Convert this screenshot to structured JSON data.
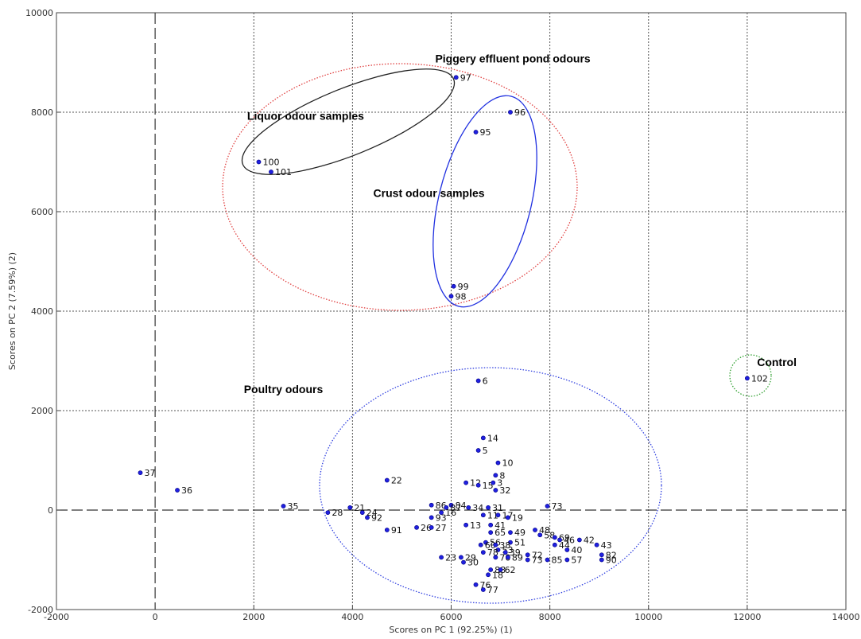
{
  "chart_data": {
    "type": "scatter",
    "title": "",
    "xlabel": "Scores on PC 1 (92.25%) (1)",
    "ylabel": "Scores on PC 2 (7.59%)  (2)",
    "xlim": [
      -2000,
      14000
    ],
    "ylim": [
      -2000,
      10000
    ],
    "xticks": [
      -2000,
      0,
      2000,
      4000,
      6000,
      8000,
      10000,
      12000,
      14000
    ],
    "yticks": [
      -2000,
      0,
      2000,
      4000,
      6000,
      8000,
      10000
    ],
    "grid": true,
    "zero_lines": true,
    "marker_color": "#2020e0",
    "series": [
      {
        "points": [
          {
            "label": "97",
            "x": 6100,
            "y": 8700
          },
          {
            "label": "96",
            "x": 7200,
            "y": 8000
          },
          {
            "label": "95",
            "x": 6500,
            "y": 7600
          },
          {
            "label": "100",
            "x": 2100,
            "y": 7000
          },
          {
            "label": "101",
            "x": 2350,
            "y": 6800
          },
          {
            "label": "99",
            "x": 6050,
            "y": 4500
          },
          {
            "label": "98",
            "x": 6000,
            "y": 4300
          },
          {
            "label": "102",
            "x": 12000,
            "y": 2650
          },
          {
            "label": "6",
            "x": 6550,
            "y": 2600
          },
          {
            "label": "14",
            "x": 6650,
            "y": 1450
          },
          {
            "label": "5",
            "x": 6550,
            "y": 1200
          },
          {
            "label": "10",
            "x": 6950,
            "y": 950
          },
          {
            "label": "8",
            "x": 6900,
            "y": 700
          },
          {
            "label": "22",
            "x": 4700,
            "y": 600
          },
          {
            "label": "12",
            "x": 6300,
            "y": 550
          },
          {
            "label": "15",
            "x": 6550,
            "y": 500
          },
          {
            "label": "3",
            "x": 6850,
            "y": 550
          },
          {
            "label": "32",
            "x": 6900,
            "y": 400
          },
          {
            "label": "37",
            "x": -300,
            "y": 750
          },
          {
            "label": "36",
            "x": 450,
            "y": 400
          },
          {
            "label": "35",
            "x": 2600,
            "y": 80
          },
          {
            "label": "21",
            "x": 3950,
            "y": 50
          },
          {
            "label": "28",
            "x": 3500,
            "y": -50
          },
          {
            "label": "24",
            "x": 4200,
            "y": -50
          },
          {
            "label": "92",
            "x": 4300,
            "y": -150
          },
          {
            "label": "86",
            "x": 5600,
            "y": 100
          },
          {
            "label": "84",
            "x": 6000,
            "y": 100
          },
          {
            "label": "87",
            "x": 5900,
            "y": 50
          },
          {
            "label": "16",
            "x": 5800,
            "y": -50
          },
          {
            "label": "34",
            "x": 6350,
            "y": 50
          },
          {
            "label": "31",
            "x": 6750,
            "y": 50
          },
          {
            "label": "73",
            "x": 7950,
            "y": 80
          },
          {
            "label": "11",
            "x": 6650,
            "y": -100
          },
          {
            "label": "17",
            "x": 6950,
            "y": -100
          },
          {
            "label": "19",
            "x": 7150,
            "y": -150
          },
          {
            "label": "93",
            "x": 5600,
            "y": -150
          },
          {
            "label": "26",
            "x": 5300,
            "y": -350
          },
          {
            "label": "27",
            "x": 5600,
            "y": -350
          },
          {
            "label": "13",
            "x": 6300,
            "y": -300
          },
          {
            "label": "41",
            "x": 6800,
            "y": -300
          },
          {
            "label": "91",
            "x": 4700,
            "y": -400
          },
          {
            "label": "49",
            "x": 7200,
            "y": -450
          },
          {
            "label": "48",
            "x": 7700,
            "y": -400
          },
          {
            "label": "65",
            "x": 6800,
            "y": -450
          },
          {
            "label": "58",
            "x": 7800,
            "y": -500
          },
          {
            "label": "69",
            "x": 8100,
            "y": -550
          },
          {
            "label": "46",
            "x": 8200,
            "y": -600
          },
          {
            "label": "42",
            "x": 8600,
            "y": -600
          },
          {
            "label": "51",
            "x": 7200,
            "y": -650
          },
          {
            "label": "56",
            "x": 6700,
            "y": -650
          },
          {
            "label": "60",
            "x": 6600,
            "y": -700
          },
          {
            "label": "38",
            "x": 6900,
            "y": -700
          },
          {
            "label": "44",
            "x": 8100,
            "y": -700
          },
          {
            "label": "43",
            "x": 8950,
            "y": -700
          },
          {
            "label": "53",
            "x": 6950,
            "y": -800
          },
          {
            "label": "40",
            "x": 8350,
            "y": -800
          },
          {
            "label": "78",
            "x": 6650,
            "y": -850
          },
          {
            "label": "39",
            "x": 7100,
            "y": -850
          },
          {
            "label": "72",
            "x": 7550,
            "y": -900
          },
          {
            "label": "82",
            "x": 9050,
            "y": -900
          },
          {
            "label": "23",
            "x": 5800,
            "y": -950
          },
          {
            "label": "29",
            "x": 6200,
            "y": -950
          },
          {
            "label": "70",
            "x": 6900,
            "y": -950
          },
          {
            "label": "89",
            "x": 7150,
            "y": -950
          },
          {
            "label": "73b",
            "x": 7550,
            "y": -1000
          },
          {
            "label": "85",
            "x": 7950,
            "y": -1000
          },
          {
            "label": "57",
            "x": 8350,
            "y": -1000
          },
          {
            "label": "90",
            "x": 9050,
            "y": -1000
          },
          {
            "label": "30",
            "x": 6250,
            "y": -1050
          },
          {
            "label": "88",
            "x": 6800,
            "y": -1200
          },
          {
            "label": "62",
            "x": 7000,
            "y": -1200
          },
          {
            "label": "18",
            "x": 6750,
            "y": -1300
          },
          {
            "label": "76",
            "x": 6500,
            "y": -1500
          },
          {
            "label": "77",
            "x": 6650,
            "y": -1600
          }
        ]
      }
    ],
    "annotations": [
      {
        "text": "Piggery effluent pond odours",
        "x": 7250,
        "y": 9000
      },
      {
        "text": "Liquor odour samples",
        "x": 3050,
        "y": 7850
      },
      {
        "text": "Crust odour samples",
        "x": 5550,
        "y": 6300
      },
      {
        "text": "Control",
        "x": 12600,
        "y": 2900
      },
      {
        "text": "Poultry odours",
        "x": 2600,
        "y": 2350
      }
    ],
    "groups": [
      {
        "name": "Piggery effluent pond odours",
        "color": "#e04040",
        "style": "dotted"
      },
      {
        "name": "Liquor odour samples",
        "color": "#222222",
        "style": "solid"
      },
      {
        "name": "Crust odour samples",
        "color": "#2030e0",
        "style": "solid"
      },
      {
        "name": "Control",
        "color": "#30a030",
        "style": "dotted"
      },
      {
        "name": "Poultry odours",
        "color": "#3040e0",
        "style": "dotted"
      }
    ]
  }
}
